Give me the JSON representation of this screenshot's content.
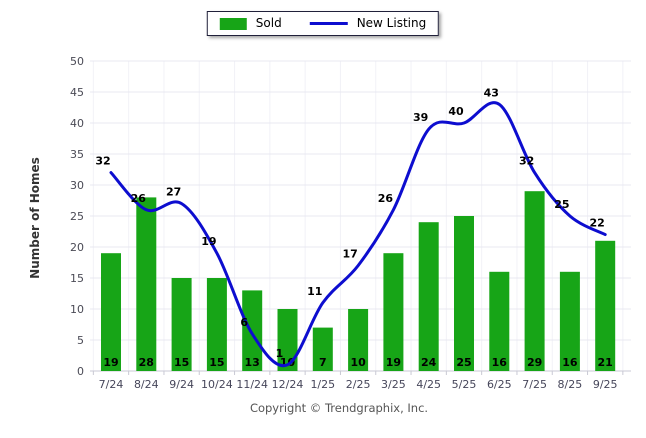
{
  "legend": {
    "sold_label": "Sold",
    "new_listing_label": "New Listing"
  },
  "caption": "Copyright © Trendgraphix, Inc.",
  "colors": {
    "bar_green": "#17a517",
    "line_blue": "#0d0dcf",
    "gridline": "#e8e8f1",
    "vgridline": "#f2f2f7",
    "axis_line": "#c9c9d4",
    "tick_text": "#4a4a55",
    "x_tick_text": "#46465a",
    "value_label": "#000000",
    "axis_title": "#333333"
  },
  "chart_data": {
    "type": "bar",
    "subtype": "combo-bar-line",
    "title": "",
    "xlabel": "",
    "ylabel": "Number of Homes",
    "ylim": [
      0,
      50
    ],
    "yticks": [
      0,
      5,
      10,
      15,
      20,
      25,
      30,
      35,
      40,
      45,
      50
    ],
    "grid": true,
    "legend_position": "top",
    "categories": [
      "7/24",
      "8/24",
      "9/24",
      "10/24",
      "11/24",
      "12/24",
      "1/25",
      "2/25",
      "3/25",
      "4/25",
      "5/25",
      "6/25",
      "7/25",
      "8/25",
      "9/25"
    ],
    "series": [
      {
        "name": "Sold",
        "type": "bar",
        "color": "#17a517",
        "values": [
          19,
          28,
          15,
          15,
          13,
          10,
          7,
          10,
          19,
          24,
          25,
          16,
          29,
          16,
          21
        ]
      },
      {
        "name": "New Listing",
        "type": "line",
        "color": "#0d0dcf",
        "values": [
          32,
          26,
          27,
          19,
          6,
          1,
          11,
          17,
          26,
          39,
          40,
          43,
          32,
          25,
          22
        ]
      }
    ]
  }
}
